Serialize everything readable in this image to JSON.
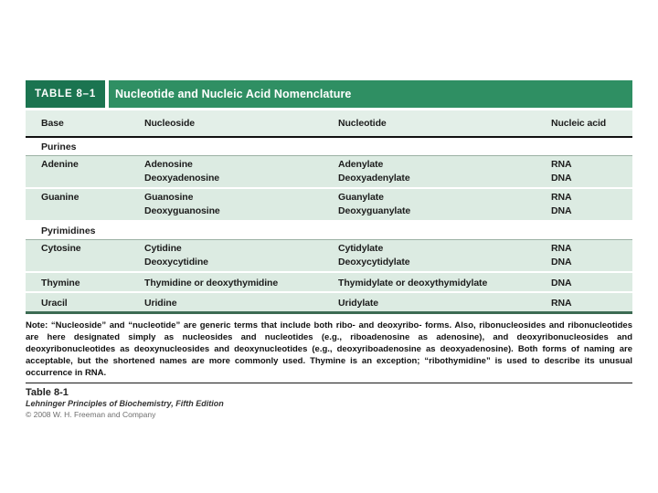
{
  "table": {
    "tag": "TABLE 8–1",
    "title": "Nucleotide and Nucleic Acid Nomenclature",
    "columns": {
      "base": "Base",
      "nucleoside": "Nucleoside",
      "nucleotide": "Nucleotide",
      "acid": "Nucleic acid"
    },
    "rows": [
      {
        "section": "Purines"
      },
      {
        "base": "Adenine",
        "nucleoside1": "Adenosine",
        "nucleoside2": "Deoxyadenosine",
        "nucleotide1": "Adenylate",
        "nucleotide2": "Deoxyadenylate",
        "acid1": "RNA",
        "acid2": "DNA"
      },
      {
        "base": "Guanine",
        "nucleoside1": "Guanosine",
        "nucleoside2": "Deoxyguanosine",
        "nucleotide1": "Guanylate",
        "nucleotide2": "Deoxyguanylate",
        "acid1": "RNA",
        "acid2": "DNA"
      },
      {
        "section": "Pyrimidines"
      },
      {
        "base": "Cytosine",
        "nucleoside1": "Cytidine",
        "nucleoside2": "Deoxycytidine",
        "nucleotide1": "Cytidylate",
        "nucleotide2": "Deoxycytidylate",
        "acid1": "RNA",
        "acid2": "DNA"
      },
      {
        "base": "Thymine",
        "nucleoside1": "Thymidine or deoxythymidine",
        "nucleotide1": "Thymidylate or deoxythymidylate",
        "acid1": "DNA"
      },
      {
        "base": "Uracil",
        "nucleoside1": "Uridine",
        "nucleotide1": "Uridylate",
        "acid1": "RNA"
      }
    ]
  },
  "note": {
    "label": "Note:",
    "body": " “Nucleoside” and “nucleotide” are generic terms that include both ribo- and deoxyribo- forms. Also, ribonucleosides and ribonucleotides are here designated simply as nucleosides and nucleotides (e.g., riboadenosine as adenosine), and deoxyribonucleosides and deoxyribonucleotides as deoxynucleosides and deoxynucleotides (e.g., deoxyriboadenosine as deoxyadenosine). Both forms of naming are acceptable, but the shortened names are more commonly used. Thymine is an exception; “ribothymidine” is used to describe its unusual occurrence in RNA."
  },
  "caption": {
    "table_ref": "Table 8-1",
    "book": "Lehninger Principles of Biochemistry, Fifth Edition",
    "copyright": "© 2008 W. H. Freeman and Company"
  },
  "colors": {
    "tag_green": "#1b7450",
    "title_green": "#2f8f63",
    "row_green": "#dcebe2",
    "header_row_green": "#e3efe8",
    "bottom_rule_green": "#3c6b53"
  }
}
